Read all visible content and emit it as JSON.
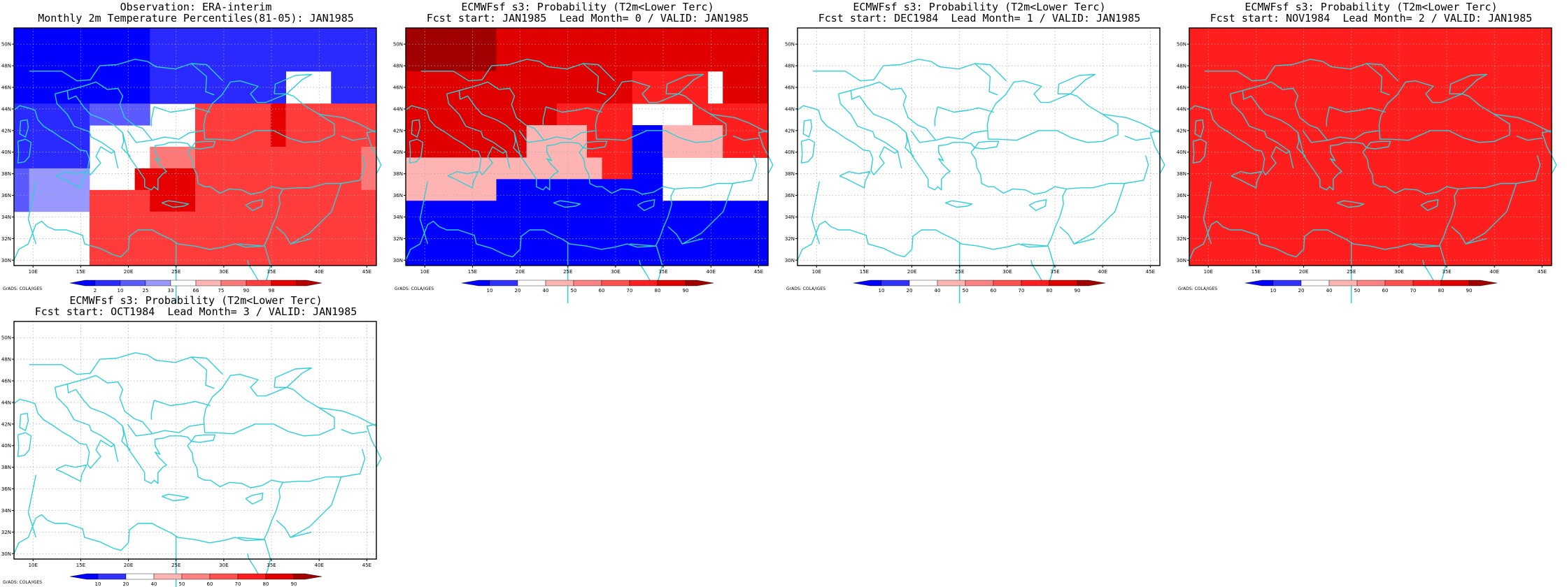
{
  "credit": "GrADS: COLA/IGES",
  "x_ticks": [
    "10E",
    "15E",
    "20E",
    "25E",
    "30E",
    "35E",
    "40E",
    "45E"
  ],
  "y_ticks": [
    "30N",
    "32N",
    "34N",
    "36N",
    "38N",
    "40N",
    "42N",
    "44N",
    "46N",
    "48N",
    "50N"
  ],
  "colors": {
    "coast": "#2ecfd6",
    "grid": "#aaaaaa",
    "obs_scale": [
      "#0000ff",
      "#2a2aff",
      "#5a5aff",
      "#9898ff",
      "#ffffff",
      "#ffb4b4",
      "#ff7878",
      "#ff3c3c",
      "#e60000",
      "#b40000"
    ],
    "prob_scale": [
      "#0000ff",
      "#3232ff",
      "#ffffff",
      "#ffb4b4",
      "#ff8282",
      "#ff5050",
      "#ff1e1e",
      "#e00000",
      "#a00000"
    ]
  },
  "panels": [
    {
      "title1": "Observation: ERA-interim",
      "title2": "Monthly 2m Temperature Percentiles(81-05): JAN1985",
      "scale": "obs",
      "colorbar_labels": [
        "2",
        "10",
        "25",
        "33",
        "66",
        "75",
        "90",
        "98"
      ],
      "grid_levels": [
        "000000000111111111111111",
        "000000000111111111111111",
        "000000000111111111111111",
        "000000000111111111111111",
        "000000000111111111444111",
        "000000000111111111444111",
        "000000000111111111444111",
        "111112222444777778777777",
        "111112222444777778777777",
        "111114444444777778777777",
        "111114444444777778777777",
        "111114444666777777777776",
        "111114444666777777777776",
        "233334448888777777777776",
        "233334448888777777777776",
        "233337777888777777777777",
        "233337777888777777777777",
        "444447777777777777777777",
        "444447777777777777777777",
        "444447777777777777777777",
        "444447777777777777777777",
        "444447777777777777777777"
      ]
    },
    {
      "title1": "ECMWFsf s3: Probability (T2m<Lower Terc)",
      "title2": "Fcst start: JAN1985  Lead Month= 0 / VALID: JAN1985",
      "scale": "prob",
      "colorbar_labels": [
        "10",
        "20",
        "40",
        "50",
        "60",
        "70",
        "80",
        "90"
      ],
      "grid_levels": [
        "888888777777777777777777",
        "888888777777777777777777",
        "888888777777777777777777",
        "888888777777777777777777",
        "777777777777777666662777",
        "777777777777777666662777",
        "777777777777777666662777",
        "777777777766666222266666",
        "777777777766666222266666",
        "777777773333666003333666",
        "777777773333666003333666",
        "777777773333666003333666",
        "333333333333366002222222",
        "333333333333366002222222",
        "333333000000000002222222",
        "333333000000000002222222",
        "000000000000000000000000",
        "000000000000000000000000",
        "000000000000000000000000",
        "000000000000000000000000",
        "000000000000000000000000",
        "000000000000000000000000"
      ]
    },
    {
      "title1": "ECMWFsf s3: Probability (T2m<Lower Terc)",
      "title2": "Fcst start: DEC1984  Lead Month= 1 / VALID: JAN1985",
      "scale": "prob",
      "colorbar_labels": [
        "10",
        "20",
        "40",
        "50",
        "60",
        "70",
        "80",
        "90"
      ],
      "grid_levels": [
        "222222222222222222222222",
        "222222222222222222222222",
        "222222222222222222222222",
        "222222222222222222222222",
        "222222222222222222222222",
        "222222222222222222222222",
        "222222222222222222222222",
        "222222222222222222222222",
        "222222222222222222222222",
        "222222222222222222222222",
        "222222222222222222222222",
        "222222222222222222222222",
        "222222222222222222222222",
        "222222222222222222222222",
        "222222222222222222222222",
        "222222222222222222222222",
        "222222222222222222222222",
        "222222222222222222222222",
        "222222222222222222222222",
        "222222222222222222222222",
        "222222222222222222222222",
        "222222222222222222222222"
      ]
    },
    {
      "title1": "ECMWFsf s3: Probability (T2m<Lower Terc)",
      "title2": "Fcst start: NOV1984  Lead Month= 2 / VALID: JAN1985",
      "scale": "prob",
      "colorbar_labels": [
        "10",
        "20",
        "40",
        "50",
        "60",
        "70",
        "80",
        "90"
      ],
      "grid_levels": [
        "666666666666666666666666",
        "666666666666666666666666",
        "666666666666666666666666",
        "666666666666666666666666",
        "666666666666666666666666",
        "666666666666666666666666",
        "666666666666666666666666",
        "666666666666666666666666",
        "666666666666666666666666",
        "666666666666666666666666",
        "666666666666666666666666",
        "666666666666666666666666",
        "666666666666666666666666",
        "666666666666666666666666",
        "666666666666666666666666",
        "666666666666666666666666",
        "666666666666666666666666",
        "666666666666666666666666",
        "666666666666666666666666",
        "666666666666666666666666",
        "666666666666666666666666",
        "666666666666666666666666"
      ]
    },
    {
      "title1": "ECMWFsf s3: Probability (T2m<Lower Terc)",
      "title2": "Fcst start: OCT1984  Lead Month= 3 / VALID: JAN1985",
      "scale": "prob",
      "colorbar_labels": [
        "10",
        "20",
        "40",
        "50",
        "60",
        "70",
        "80",
        "90"
      ],
      "grid_levels": [
        "222222222222222222222222",
        "222222222222222222222222",
        "222222222222222222222222",
        "222222222222222222222222",
        "222222222222222222222222",
        "222222222222222222222222",
        "222222222222222222222222",
        "222222222222222222222222",
        "222222222222222222222222",
        "222222222222222222222222",
        "222222222222222222222222",
        "222222222222222222222222",
        "222222222222222222222222",
        "222222222222222222222222",
        "222222222222222222222222",
        "222222222222222222222222",
        "222222222222222222222222",
        "222222222222222222222222",
        "222222222222222222222222",
        "222222222222222222222222",
        "222222222222222222222222",
        "222222222222222222222222"
      ]
    }
  ]
}
